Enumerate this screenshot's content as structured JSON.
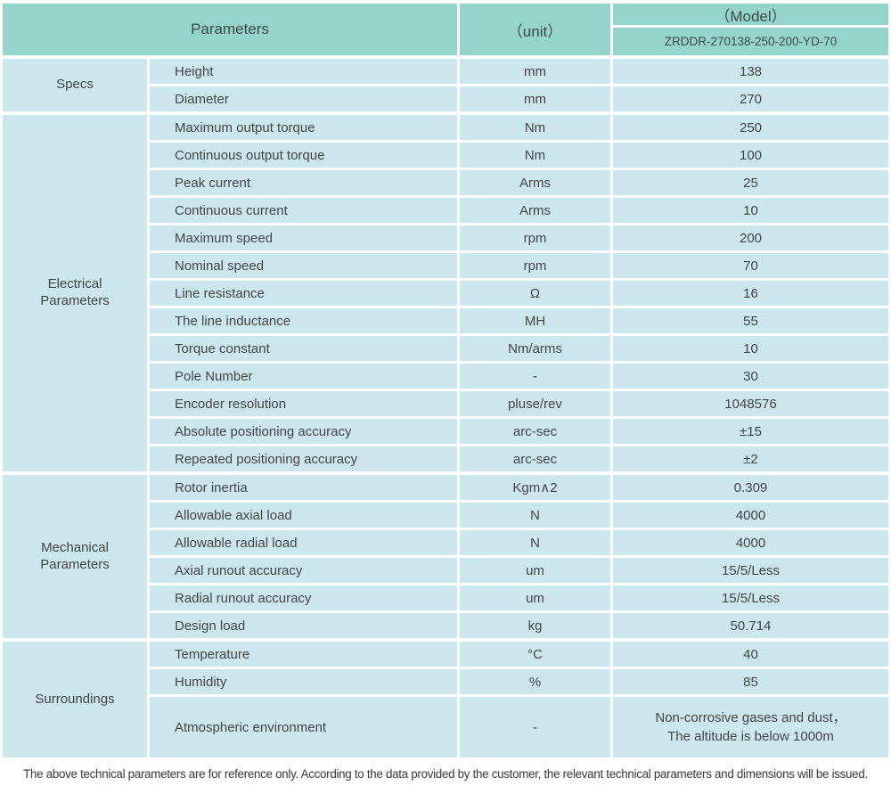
{
  "colors": {
    "header_bg": "#94d4cb",
    "row_bg": "#cbe6ed",
    "border": "#ffffff",
    "text": "#454545"
  },
  "header": {
    "parameters_label": "Parameters",
    "unit_label": "（unit）",
    "model_label": "（Model）",
    "model_value": "ZRDDR-270138-250-200-YD-70"
  },
  "sections": [
    {
      "group": "Specs",
      "rows": [
        {
          "param": "Height",
          "unit": "mm",
          "value": "138"
        },
        {
          "param": "Diameter",
          "unit": "mm",
          "value": "270"
        }
      ]
    },
    {
      "group": "Electrical Parameters",
      "rows": [
        {
          "param": "Maximum output torque",
          "unit": "Nm",
          "value": "250"
        },
        {
          "param": "Continuous output torque",
          "unit": "Nm",
          "value": "100"
        },
        {
          "param": "Peak current",
          "unit": "Arms",
          "value": "25"
        },
        {
          "param": "Continuous current",
          "unit": "Arms",
          "value": "10"
        },
        {
          "param": "Maximum speed",
          "unit": "rpm",
          "value": "200"
        },
        {
          "param": "Nominal speed",
          "unit": "rpm",
          "value": "70"
        },
        {
          "param": "Line resistance",
          "unit": "Ω",
          "value": "16"
        },
        {
          "param": "The line inductance",
          "unit": "MH",
          "value": "55"
        },
        {
          "param": "Torque constant",
          "unit": "Nm/arms",
          "value": "10"
        },
        {
          "param": "Pole Number",
          "unit": "-",
          "value": "30"
        },
        {
          "param": "Encoder resolution",
          "unit": "pluse/rev",
          "value": "1048576"
        },
        {
          "param": "Absolute positioning accuracy",
          "unit": "arc-sec",
          "value": "±15"
        },
        {
          "param": "Repeated positioning accuracy",
          "unit": "arc-sec",
          "value": "±2"
        }
      ]
    },
    {
      "group": "Mechanical Parameters",
      "rows": [
        {
          "param": "Rotor inertia",
          "unit": "Kgm∧2",
          "value": "0.309"
        },
        {
          "param": "Allowable axial load",
          "unit": "N",
          "value": "4000"
        },
        {
          "param": "Allowable radial load",
          "unit": "N",
          "value": "4000"
        },
        {
          "param": "Axial runout accuracy",
          "unit": "um",
          "value": "15/5/Less"
        },
        {
          "param": "Radial runout accuracy",
          "unit": "um",
          "value": "15/5/Less"
        },
        {
          "param": "Design load",
          "unit": "kg",
          "value": "50.714"
        }
      ]
    },
    {
      "group": "Surroundings",
      "rows": [
        {
          "param": "Temperature",
          "unit": "°C",
          "value": "40"
        },
        {
          "param": "Humidity",
          "unit": "%",
          "value": "85"
        },
        {
          "param": "Atmospheric environment",
          "unit": "-",
          "value": "Non-corrosive gases and dust，\nThe altitude is below 1000m"
        }
      ]
    }
  ],
  "footer": {
    "note": "The above technical parameters are for reference only. According to the data provided by the customer, the relevant technical parameters and dimensions will be issued."
  }
}
